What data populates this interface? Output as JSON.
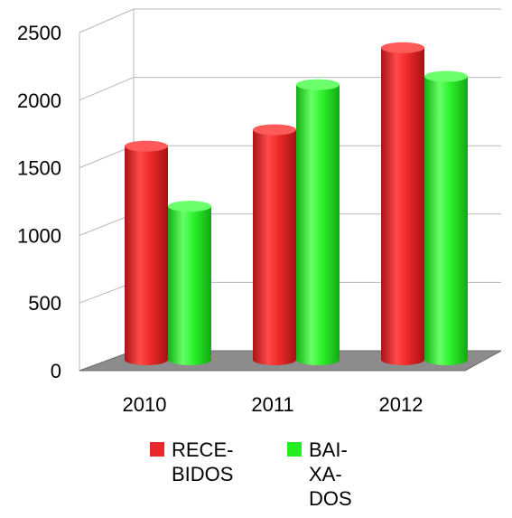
{
  "chart_data": {
    "type": "bar",
    "categories": [
      "2010",
      "2011",
      "2012"
    ],
    "series": [
      {
        "name": "RECE-\nBIDOS",
        "values": [
          1550,
          1670,
          2270
        ],
        "color": "#e8282a"
      },
      {
        "name": "BAI-\nXA-\nDOS",
        "values": [
          1110,
          2000,
          2060
        ],
        "color": "#22ee22"
      }
    ],
    "title": "",
    "xlabel": "",
    "ylabel": "",
    "ylim": [
      0,
      2500
    ],
    "yticks": [
      "0",
      "500",
      "1000",
      "1500",
      "2000",
      "2500"
    ],
    "grid": true,
    "legend_position": "bottom",
    "style": "3d-cylinder"
  }
}
